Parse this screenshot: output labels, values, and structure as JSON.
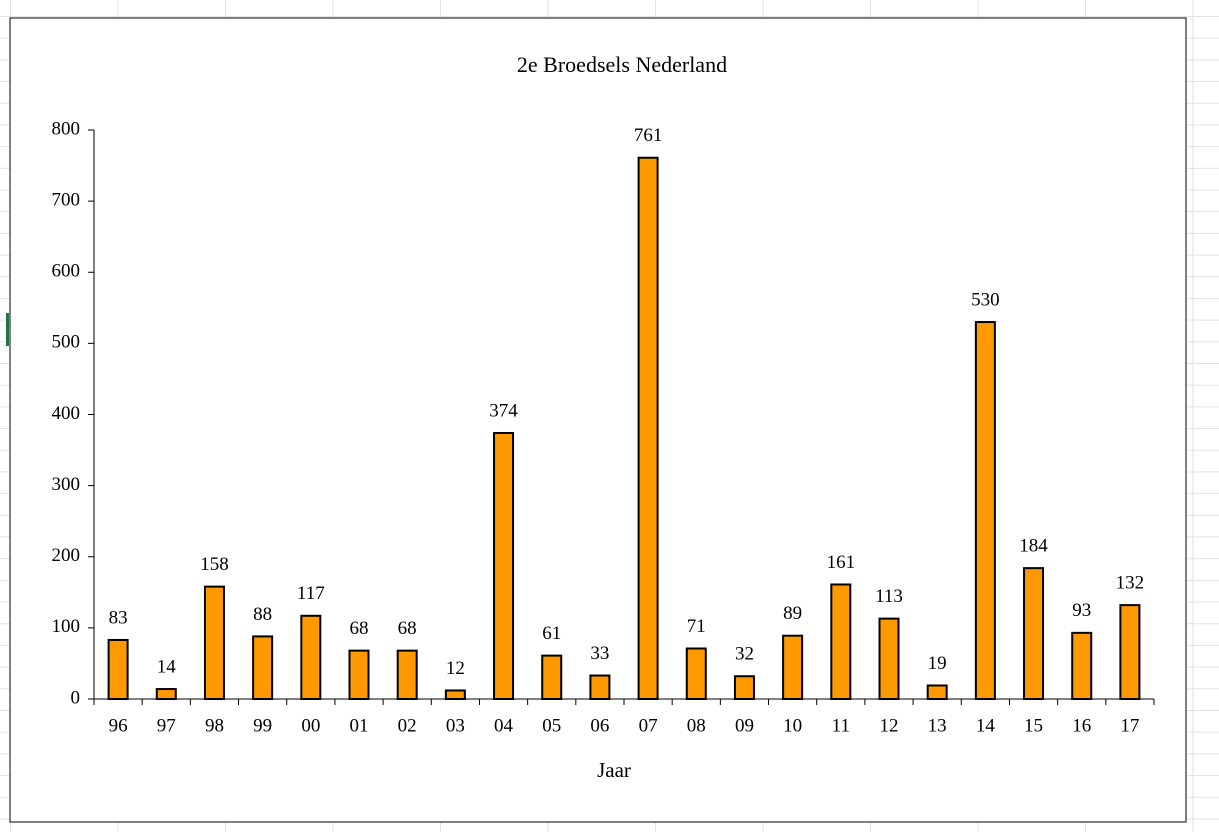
{
  "chart_data": {
    "type": "bar",
    "title": "2e Broedsels Nederland",
    "x_label": "Jaar",
    "categories": [
      "96",
      "97",
      "98",
      "99",
      "00",
      "01",
      "02",
      "03",
      "04",
      "05",
      "06",
      "07",
      "08",
      "09",
      "10",
      "11",
      "12",
      "13",
      "14",
      "15",
      "16",
      "17"
    ],
    "values": [
      83,
      14,
      158,
      88,
      117,
      68,
      68,
      12,
      374,
      61,
      33,
      761,
      71,
      32,
      89,
      161,
      113,
      19,
      530,
      184,
      93,
      132
    ],
    "color": "#ff9900",
    "ylim": [
      0,
      800
    ],
    "yticks": [
      0,
      100,
      200,
      300,
      400,
      500,
      600,
      700,
      800
    ],
    "grid": false
  }
}
